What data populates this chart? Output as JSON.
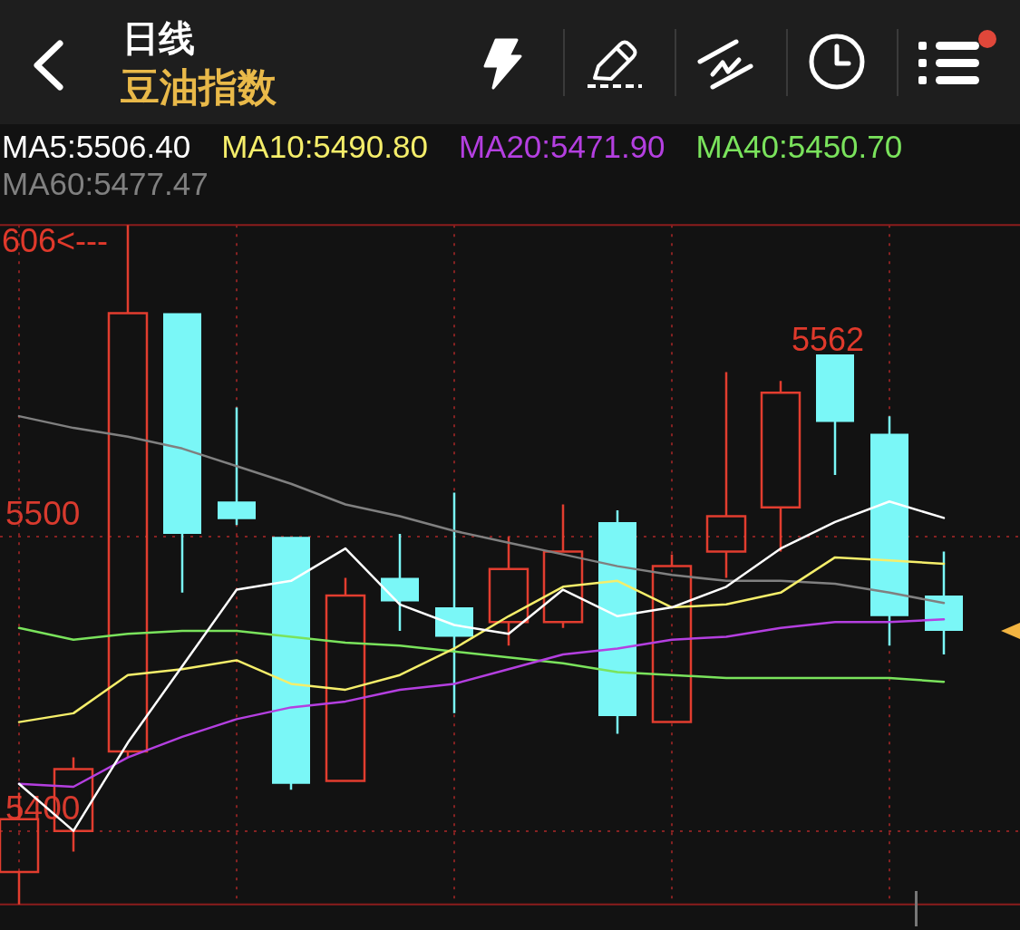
{
  "chart_data": {
    "type": "candlestick",
    "title": "日线",
    "subtitle": "豆油指数",
    "categories": [
      null,
      null,
      null,
      null,
      null,
      null,
      null,
      null,
      null,
      null,
      null,
      null,
      null,
      null,
      null,
      null,
      null,
      null
    ],
    "ohlc": [
      [
        5386,
        5413,
        5375,
        5404
      ],
      [
        5400,
        5425,
        5393,
        5421
      ],
      [
        5427,
        5606,
        5425,
        5576
      ],
      [
        5576,
        5576,
        5481,
        5501
      ],
      [
        5512,
        5544,
        5504,
        5506
      ],
      [
        5500,
        5500,
        5414,
        5416
      ],
      [
        5417,
        5486,
        5417,
        5480
      ],
      [
        5486,
        5501,
        5468,
        5478
      ],
      [
        5476,
        5515,
        5440,
        5466
      ],
      [
        5471,
        5500,
        5463,
        5489
      ],
      [
        5471,
        5511,
        5469,
        5495
      ],
      [
        5505,
        5509,
        5433,
        5439
      ],
      [
        5437,
        5494,
        5437,
        5490
      ],
      [
        5495,
        5556,
        5486,
        5507
      ],
      [
        5510,
        5553,
        5495,
        5549
      ],
      [
        5562,
        5562,
        5521,
        5539
      ],
      [
        5535,
        5541,
        5463,
        5473
      ],
      [
        5480,
        5495,
        5460,
        5468
      ]
    ],
    "colors": [
      "#e23d2f",
      "#e23d2f",
      "#e23d2f",
      "#7af7f7",
      "#7af7f7",
      "#7af7f7",
      "#e23d2f",
      "#7af7f7",
      "#7af7f7",
      "#e23d2f",
      "#e23d2f",
      "#7af7f7",
      "#e23d2f",
      "#e23d2f",
      "#e23d2f",
      "#7af7f7",
      "#7af7f7",
      "#7af7f7"
    ],
    "series": [
      {
        "name": "MA5:5506.40",
        "type": "line",
        "color": "#ffffff",
        "values": [
          5416,
          5400,
          5430,
          5456,
          5482,
          5485,
          5496,
          5477,
          5470,
          5467,
          5482,
          5473,
          5476,
          5483,
          5496,
          5505,
          5512,
          5506.4
        ]
      },
      {
        "name": "MA10:5490.80",
        "type": "line",
        "color": "#f5ee6a",
        "values": [
          5437,
          5440,
          5453,
          5455,
          5458,
          5450,
          5448,
          5453,
          5462,
          5473,
          5483,
          5485,
          5476,
          5477,
          5481,
          5493,
          5492,
          5490.8
        ]
      },
      {
        "name": "MA20:5471.90",
        "type": "line",
        "color": "#b43fe0",
        "values": [
          5416,
          5415,
          5425,
          5432,
          5438,
          5442,
          5444,
          5448,
          5450,
          5455,
          5460,
          5462,
          5465,
          5466,
          5469,
          5471,
          5471,
          5471.9
        ]
      },
      {
        "name": "MA40:5450.70",
        "type": "line",
        "color": "#7ae35c",
        "values": [
          5469,
          5465,
          5467,
          5468,
          5468,
          5466,
          5464,
          5463,
          5461,
          5459,
          5457,
          5454,
          5453,
          5452,
          5452,
          5452,
          5452,
          5450.7
        ]
      },
      {
        "name": "MA60:5477.47",
        "type": "line",
        "color": "#808080",
        "values": [
          5541,
          5537,
          5534,
          5530,
          5524,
          5518,
          5511,
          5507,
          5502,
          5498,
          5494,
          5490,
          5487,
          5485,
          5485,
          5484,
          5481,
          5477.47
        ]
      }
    ],
    "ylim": [
      5375,
      5606
    ],
    "yticks": [
      5400,
      5500
    ],
    "grid": true,
    "legend": "top left",
    "marker": "none",
    "line_style": "solid",
    "tick_labels": "y",
    "annotations": [
      "606<---",
      {
        "text": "5562",
        "y": 5562
      }
    ]
  }
}
